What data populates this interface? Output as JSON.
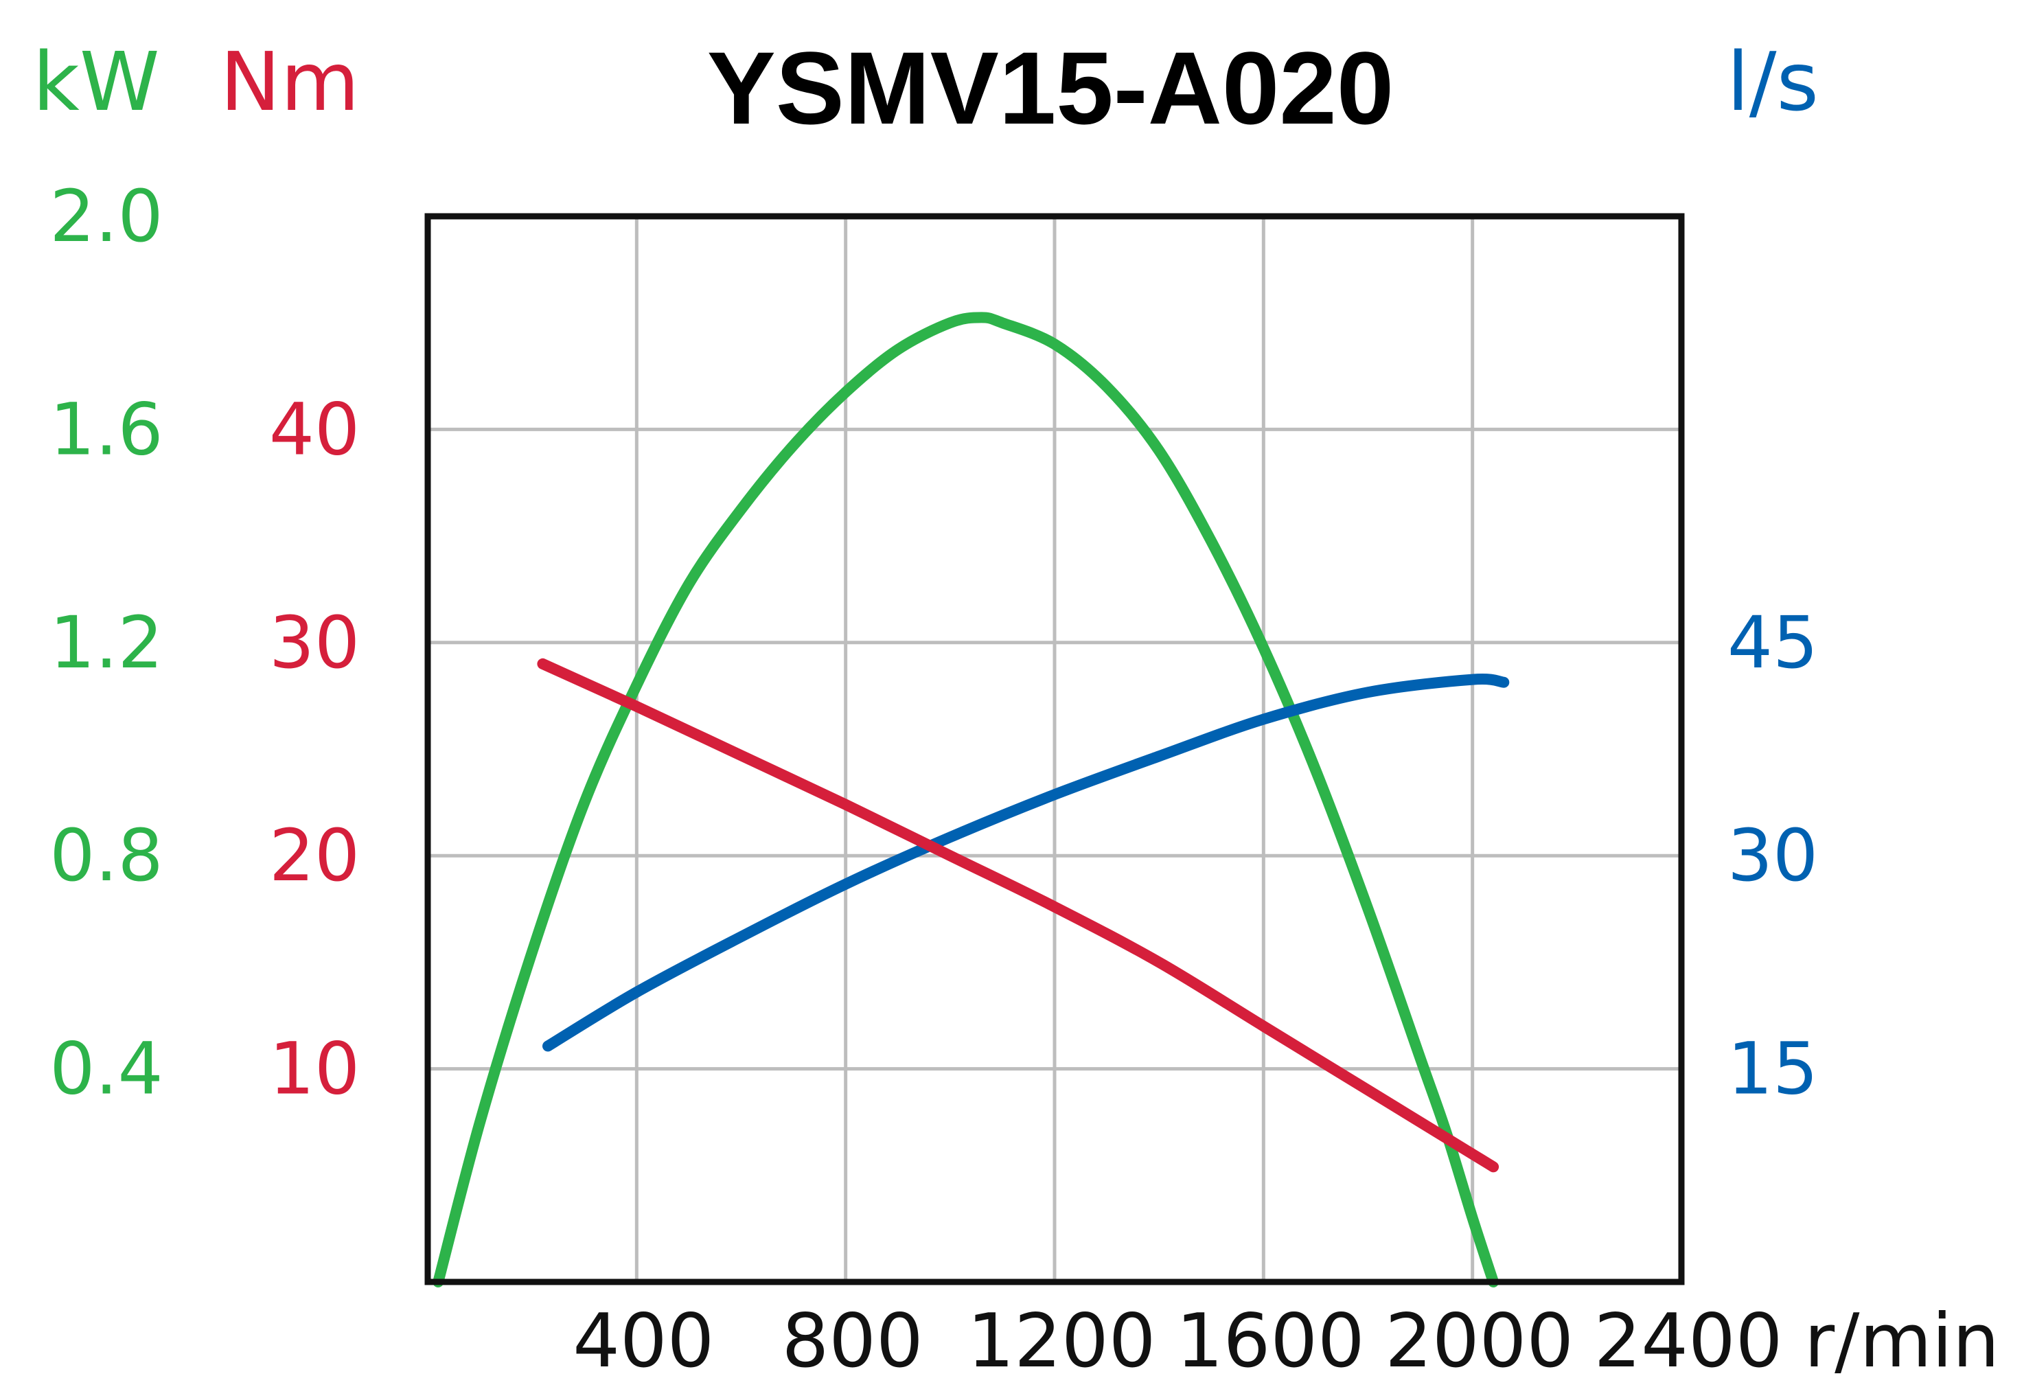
{
  "colors": {
    "power": "#2db34a",
    "torque": "#d51f3b",
    "flow": "#0061b1",
    "grid": "#bdbdbd",
    "frame": "#111111"
  },
  "chart_data": {
    "type": "line",
    "title": "YSMV15-A020",
    "xlabel": "r/min",
    "xlim": [
      0,
      2400
    ],
    "x_ticks": [
      "400",
      "800",
      "1200",
      "1600",
      "2000",
      "2400"
    ],
    "grid": true,
    "axes": {
      "power": {
        "unit": "kW",
        "side": "left-outer",
        "ylim": [
          0,
          2.0
        ],
        "ticks": [
          "0.4",
          "0.8",
          "1.2",
          "1.6",
          "2.0"
        ]
      },
      "torque": {
        "unit": "Nm",
        "side": "left-inner",
        "ylim": [
          0,
          50
        ],
        "ticks": [
          "10",
          "20",
          "30",
          "40"
        ]
      },
      "flow": {
        "unit": "l/s",
        "side": "right",
        "ylim": [
          0,
          75
        ],
        "ticks": [
          "15",
          "30",
          "45"
        ]
      }
    },
    "series": [
      {
        "key": "power",
        "axis": "power",
        "x": [
          20,
          100,
          200,
          300,
          400,
          500,
          600,
          700,
          800,
          900,
          1000,
          1060,
          1100,
          1200,
          1300,
          1400,
          1500,
          1600,
          1700,
          1800,
          1900,
          1950,
          2000,
          2040
        ],
        "y": [
          0.0,
          0.3,
          0.62,
          0.9,
          1.12,
          1.31,
          1.45,
          1.57,
          1.67,
          1.75,
          1.8,
          1.81,
          1.8,
          1.76,
          1.68,
          1.56,
          1.39,
          1.19,
          0.96,
          0.7,
          0.42,
          0.28,
          0.12,
          0.0
        ]
      },
      {
        "key": "torque",
        "axis": "torque",
        "x": [
          220,
          400,
          600,
          800,
          1000,
          1200,
          1400,
          1600,
          1800,
          2000,
          2040
        ],
        "y": [
          29.0,
          27.0,
          24.7,
          22.4,
          20.0,
          17.6,
          15.0,
          12.0,
          9.0,
          6.0,
          5.4
        ]
      },
      {
        "key": "flow",
        "axis": "flow",
        "x": [
          230,
          400,
          600,
          800,
          1000,
          1200,
          1400,
          1600,
          1800,
          2000,
          2060
        ],
        "y": [
          16.6,
          20.4,
          24.3,
          28.0,
          31.3,
          34.3,
          37.0,
          39.6,
          41.5,
          42.4,
          42.2
        ]
      }
    ]
  }
}
